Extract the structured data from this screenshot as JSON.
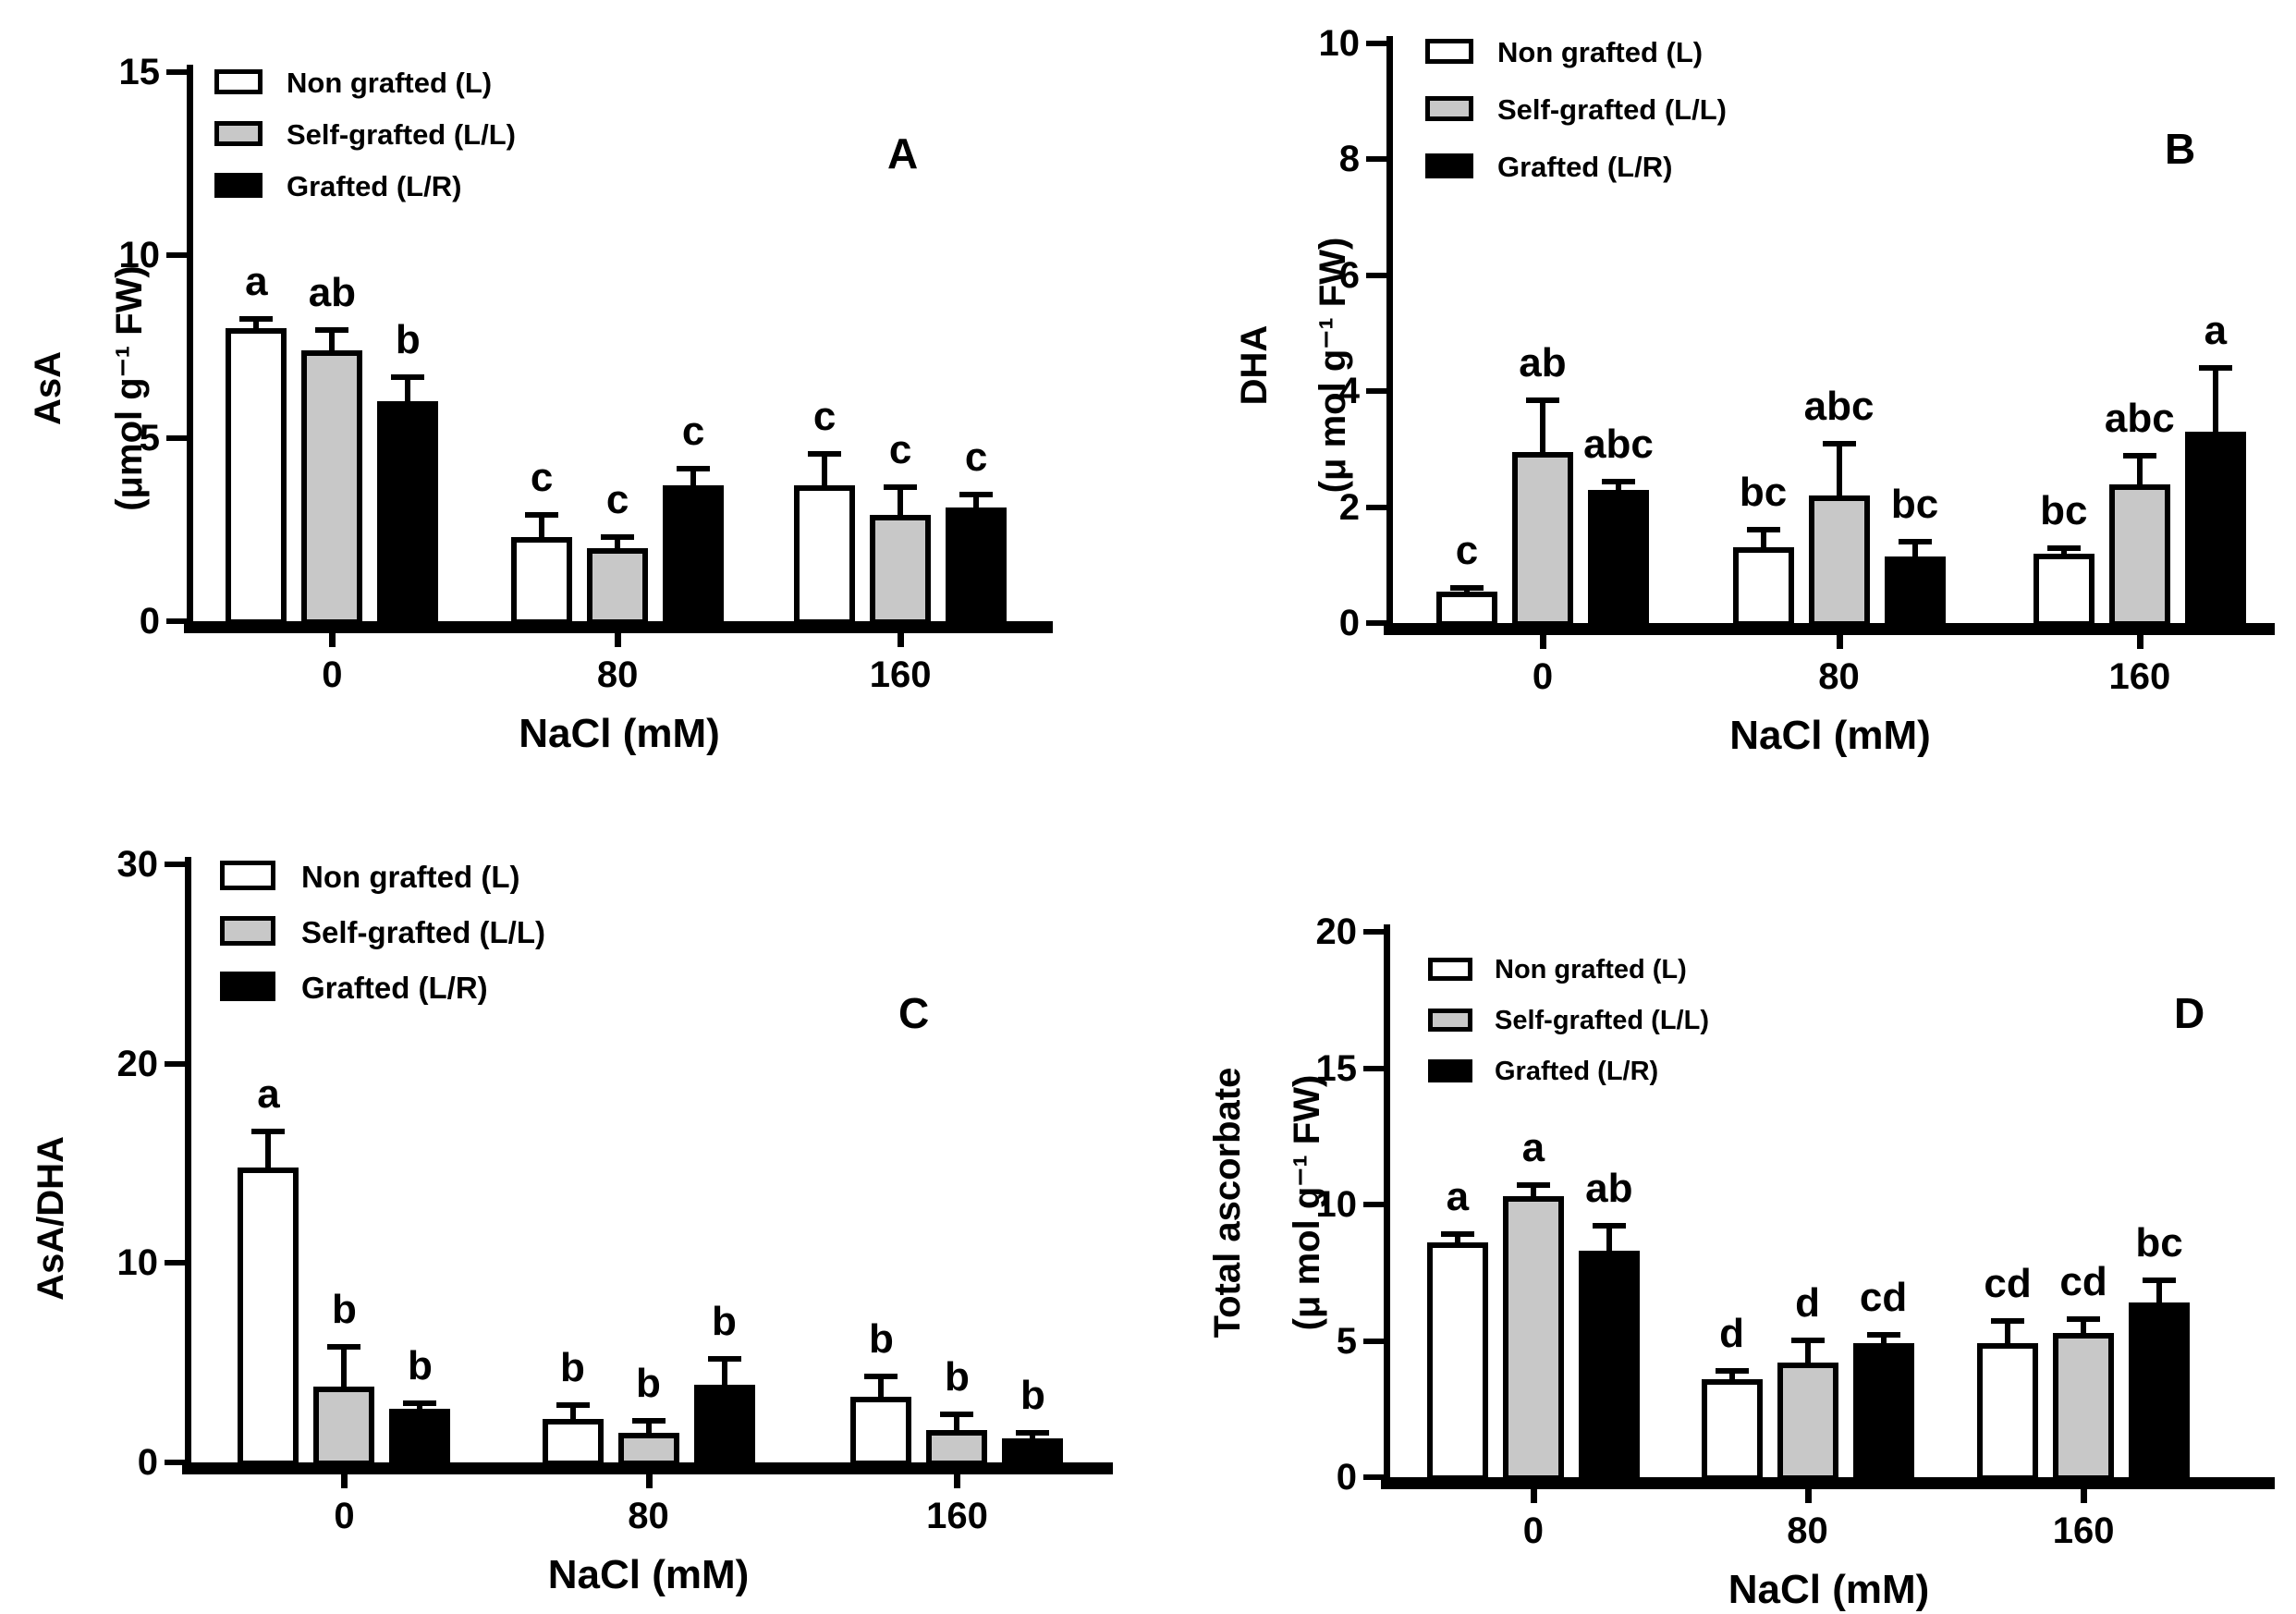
{
  "figure": {
    "background": "#ffffff",
    "xlabel": "NaCl (mM)",
    "categories": [
      "0",
      "80",
      "160"
    ],
    "legend_labels": [
      "Non grafted (L)",
      "Self-grafted (L/L)",
      "Grafted (L/R)"
    ],
    "series_fills": [
      "#ffffff",
      "#c8c8c8",
      "#000000"
    ],
    "edge_color": "#000000"
  },
  "chart_data": [
    {
      "type": "bar",
      "panel_label": "A",
      "ylabel": "AsA",
      "yunit": "(μmol g⁻¹ FW)",
      "xlabel": "NaCl (mM)",
      "categories": [
        "0",
        "80",
        "160"
      ],
      "ylim": [
        0,
        15
      ],
      "yticks": [
        0,
        5,
        10,
        15
      ],
      "legend_position": "top-left",
      "grid": false,
      "error_bars": true,
      "series": [
        {
          "name": "Non grafted (L)",
          "fill": "#ffffff",
          "values": [
            8.0,
            2.3,
            3.7
          ],
          "errors": [
            0.25,
            0.6,
            0.85
          ],
          "letters": [
            "a",
            "c",
            "c"
          ]
        },
        {
          "name": "Self-grafted (L/L)",
          "fill": "#c8c8c8",
          "values": [
            7.4,
            2.0,
            2.9
          ],
          "errors": [
            0.55,
            0.3,
            0.75
          ],
          "letters": [
            "ab",
            "c",
            "c"
          ]
        },
        {
          "name": "Grafted (L/R)",
          "fill": "#000000",
          "values": [
            6.0,
            3.7,
            3.1
          ],
          "errors": [
            0.65,
            0.45,
            0.35
          ],
          "letters": [
            "b",
            "c",
            "c"
          ]
        }
      ]
    },
    {
      "type": "bar",
      "panel_label": "B",
      "ylabel": "DHA",
      "yunit": "(μ mol g⁻¹ FW)",
      "xlabel": "NaCl (mM)",
      "categories": [
        "0",
        "80",
        "160"
      ],
      "ylim": [
        0,
        10
      ],
      "yticks": [
        0,
        2,
        4,
        6,
        8,
        10
      ],
      "legend_position": "top-left",
      "grid": false,
      "error_bars": true,
      "series": [
        {
          "name": "Non grafted (L)",
          "fill": "#ffffff",
          "values": [
            0.55,
            1.3,
            1.2
          ],
          "errors": [
            0.07,
            0.3,
            0.1
          ],
          "letters": [
            "c",
            "bc",
            "bc"
          ]
        },
        {
          "name": "Self-grafted (L/L)",
          "fill": "#c8c8c8",
          "values": [
            2.95,
            2.2,
            2.4
          ],
          "errors": [
            0.9,
            0.9,
            0.5
          ],
          "letters": [
            "ab",
            "abc",
            "abc"
          ]
        },
        {
          "name": "Grafted (L/R)",
          "fill": "#000000",
          "values": [
            2.3,
            1.15,
            3.3
          ],
          "errors": [
            0.15,
            0.25,
            1.1
          ],
          "letters": [
            "abc",
            "bc",
            "a"
          ]
        }
      ]
    },
    {
      "type": "bar",
      "panel_label": "C",
      "ylabel": "AsA/DHA",
      "yunit": "",
      "xlabel": "NaCl (mM)",
      "categories": [
        "0",
        "80",
        "160"
      ],
      "ylim": [
        0,
        30
      ],
      "yticks": [
        0,
        10,
        20,
        30
      ],
      "legend_position": "top-left",
      "grid": false,
      "error_bars": true,
      "series": [
        {
          "name": "Non grafted (L)",
          "fill": "#ffffff",
          "values": [
            14.8,
            2.2,
            3.3
          ],
          "errors": [
            1.8,
            0.7,
            1.0
          ],
          "letters": [
            "a",
            "b",
            "b"
          ]
        },
        {
          "name": "Self-grafted (L/L)",
          "fill": "#c8c8c8",
          "values": [
            3.8,
            1.5,
            1.6
          ],
          "errors": [
            2.0,
            0.6,
            0.8
          ],
          "letters": [
            "b",
            "b",
            "b"
          ]
        },
        {
          "name": "Grafted (L/R)",
          "fill": "#000000",
          "values": [
            2.7,
            3.9,
            1.2
          ],
          "errors": [
            0.3,
            1.3,
            0.3
          ],
          "letters": [
            "b",
            "b",
            "b"
          ]
        }
      ]
    },
    {
      "type": "bar",
      "panel_label": "D",
      "ylabel": "Total ascorbate",
      "yunit": "(μ mol g⁻¹ FW)",
      "xlabel": "NaCl (mM)",
      "categories": [
        "0",
        "80",
        "160"
      ],
      "ylim": [
        0,
        20
      ],
      "yticks": [
        0,
        5,
        10,
        15,
        20
      ],
      "legend_position": "top-left",
      "grid": false,
      "error_bars": true,
      "series": [
        {
          "name": "Non grafted (L)",
          "fill": "#ffffff",
          "values": [
            8.6,
            3.6,
            4.9
          ],
          "errors": [
            0.3,
            0.3,
            0.8
          ],
          "letters": [
            "a",
            "d",
            "cd"
          ]
        },
        {
          "name": "Self-grafted (L/L)",
          "fill": "#c8c8c8",
          "values": [
            10.3,
            4.2,
            5.3
          ],
          "errors": [
            0.4,
            0.8,
            0.5
          ],
          "letters": [
            "a",
            "d",
            "cd"
          ]
        },
        {
          "name": "Grafted (L/R)",
          "fill": "#000000",
          "values": [
            8.3,
            4.9,
            6.4
          ],
          "errors": [
            0.9,
            0.3,
            0.8
          ],
          "letters": [
            "ab",
            "cd",
            "bc"
          ]
        }
      ]
    }
  ]
}
